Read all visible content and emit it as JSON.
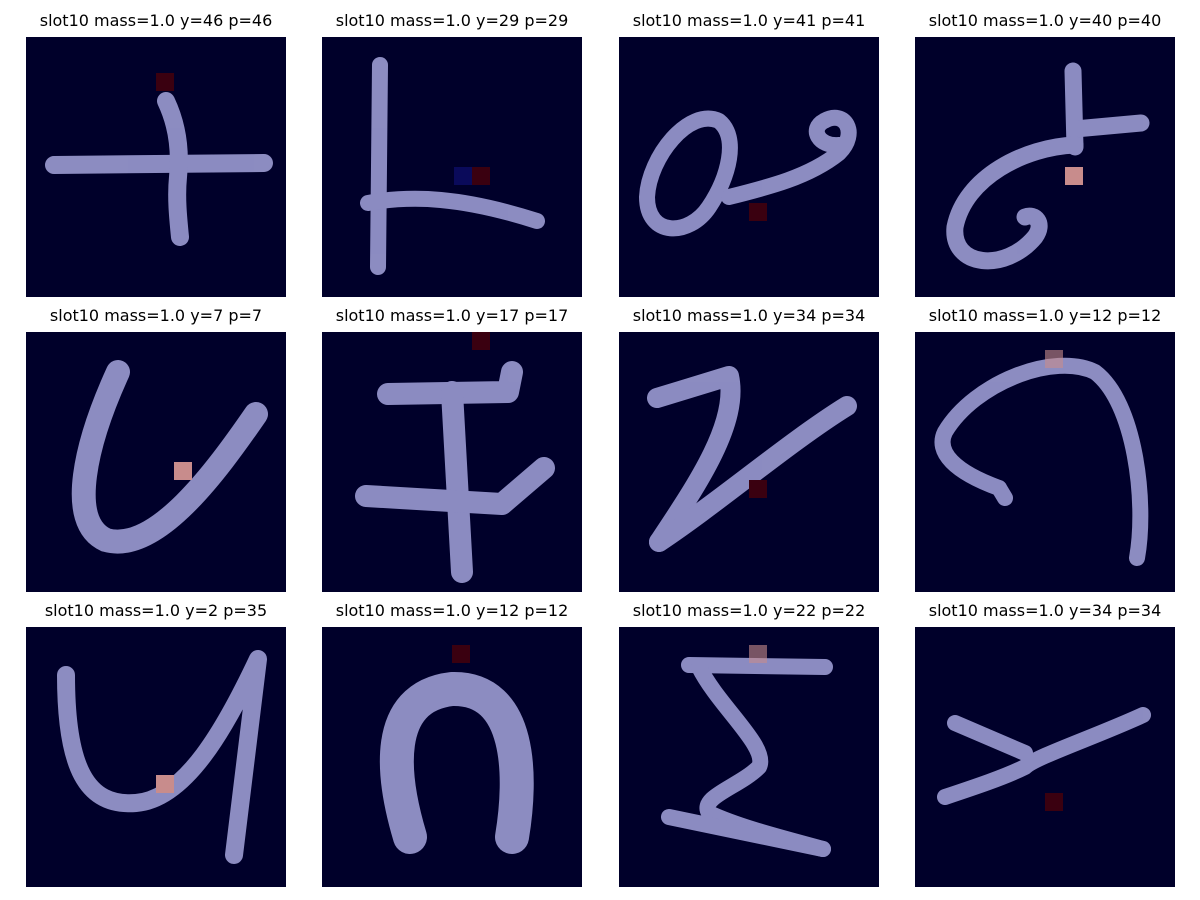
{
  "figure": {
    "background_color": "#ffffff",
    "panel_background_color": "#00002a",
    "stroke_color": "#9b9bd2",
    "marker_color_dark": "#3a0010",
    "marker_color_light": "#c88c8c",
    "marker_color_blue": "#0a0a5a"
  },
  "panels": [
    {
      "title": "slot10 mass=1.0 y=46 p=46",
      "glyph": "plus-sign"
    },
    {
      "title": "slot10 mass=1.0 y=29 p=29",
      "glyph": "cross-stroke"
    },
    {
      "title": "slot10 mass=1.0 y=41 p=41",
      "glyph": "loop-curl"
    },
    {
      "title": "slot10 mass=1.0 y=40 p=40",
      "glyph": "y-curl"
    },
    {
      "title": "slot10 mass=1.0 y=7 p=7",
      "glyph": "u-hook"
    },
    {
      "title": "slot10 mass=1.0 y=17 p=17",
      "glyph": "i-beam"
    },
    {
      "title": "slot10 mass=1.0 y=34 p=34",
      "glyph": "z-diagonal"
    },
    {
      "title": "slot10 mass=1.0 y=12 p=12",
      "glyph": "hook-arc"
    },
    {
      "title": "slot10 mass=1.0 y=2 p=35",
      "glyph": "u-check"
    },
    {
      "title": "slot10 mass=1.0 y=12 p=12",
      "glyph": "arch"
    },
    {
      "title": "slot10 mass=1.0 y=22 p=22",
      "glyph": "sigma"
    },
    {
      "title": "slot10 mass=1.0 y=34 p=34",
      "glyph": "y-lambda"
    }
  ]
}
